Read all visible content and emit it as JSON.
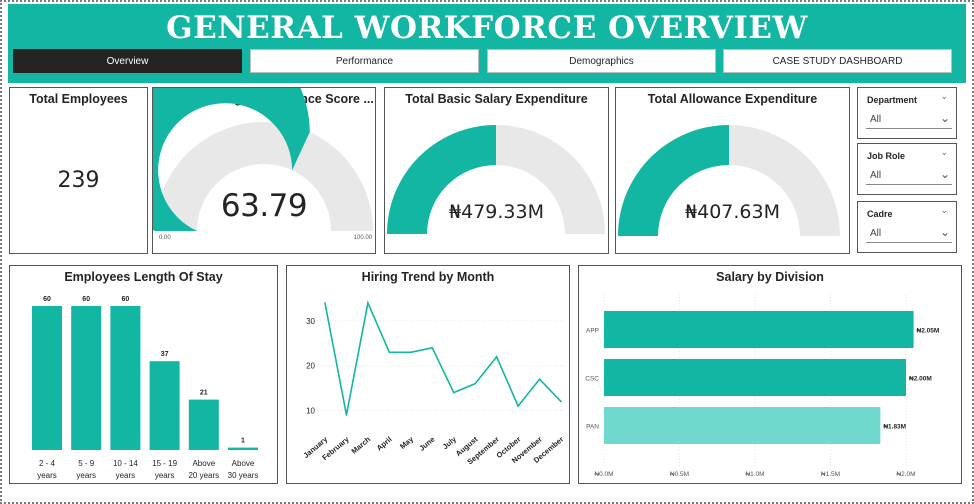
{
  "header": {
    "title": "GENERAL WORKFORCE OVERVIEW"
  },
  "tabs": [
    {
      "label": "Overview",
      "active": true
    },
    {
      "label": "Performance",
      "active": false
    },
    {
      "label": "Demographics",
      "active": false
    },
    {
      "label": "CASE STUDY DASHBOARD",
      "active": false
    }
  ],
  "kpis": {
    "total_employees": {
      "title": "Total Employees",
      "value": "239"
    },
    "avg_performance": {
      "title": "Workforce Avg Performance  Score ...",
      "value": "63.79",
      "min_label": "0.00",
      "max_label": "100.00",
      "fill_fraction": 0.6379
    },
    "basic_salary": {
      "title": "Total Basic Salary Expenditure",
      "value": "₦479.33M",
      "fill_fraction": 0.5
    },
    "allowance": {
      "title": "Total Allowance Expenditure",
      "value": "₦407.63M",
      "fill_fraction": 0.5
    }
  },
  "slicers": [
    {
      "label": "Department",
      "value": "All"
    },
    {
      "label": "Job Role",
      "value": "All"
    },
    {
      "label": "Cadre",
      "value": "All"
    }
  ],
  "colors": {
    "accent": "#13b5a3",
    "accent_light": "#6fd8cf",
    "track": "#e8e8e8",
    "dark": "#252423"
  },
  "chart_data": [
    {
      "type": "bar",
      "title": "Employees Length Of Stay",
      "categories": [
        [
          "2 - 4",
          "years"
        ],
        [
          "5 - 9",
          "years"
        ],
        [
          "10 - 14",
          "years"
        ],
        [
          "15 - 19",
          "years"
        ],
        [
          "Above",
          "20 years"
        ],
        [
          "Above",
          "30 years"
        ]
      ],
      "values": [
        60,
        60,
        60,
        37,
        21,
        1
      ],
      "ylim": [
        0,
        60
      ]
    },
    {
      "type": "line",
      "title": "Hiring Trend by Month",
      "x": [
        "January",
        "February",
        "March",
        "April",
        "May",
        "June",
        "July",
        "August",
        "September",
        "October",
        "November",
        "December"
      ],
      "values": [
        34,
        9,
        34,
        23,
        23,
        24,
        14,
        16,
        22,
        11,
        17,
        12
      ],
      "yticks": [
        10,
        20,
        30
      ],
      "ylim": [
        7,
        36
      ]
    },
    {
      "type": "bar",
      "orientation": "horizontal",
      "title": "Salary by Division",
      "categories": [
        "APP",
        "CSC",
        "PAN"
      ],
      "values": [
        2.05,
        2.0,
        1.83
      ],
      "value_labels": [
        "₦2.05M",
        "₦2.00M",
        "₦1.83M"
      ],
      "xticks": [
        "₦0.0M",
        "₦0.5M",
        "₦1.0M",
        "₦1.5M",
        "₦2.0M"
      ],
      "xlim": [
        0,
        2.0
      ]
    }
  ]
}
